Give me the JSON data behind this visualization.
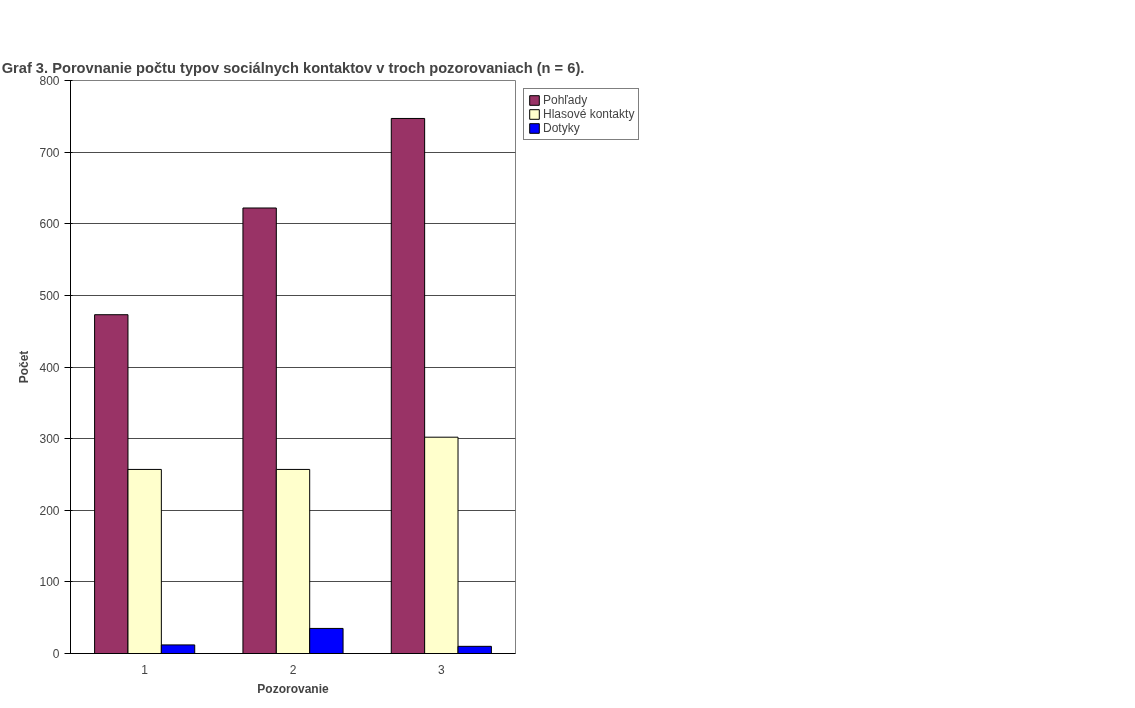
{
  "chart_data": {
    "type": "bar",
    "title": "Graf 3. Porovnanie počtu typov sociálnych kontaktov v troch pozorovaniach (n = 6).",
    "xlabel": "Pozorovanie",
    "ylabel": "Počet",
    "categories": [
      "1",
      "2",
      "3"
    ],
    "series": [
      {
        "name": "Pohľady",
        "color": "#993366",
        "values": [
          473,
          622,
          747
        ]
      },
      {
        "name": "Hlasové kontakty",
        "color": "#ffffcc",
        "values": [
          257,
          257,
          302
        ]
      },
      {
        "name": "Dotyky",
        "color": "#0000ff",
        "values": [
          12,
          35,
          10
        ]
      }
    ],
    "ylim": [
      0,
      800
    ],
    "yticks": [
      0,
      100,
      200,
      300,
      400,
      500,
      600,
      700,
      800
    ],
    "grid": "y",
    "legend": "top right"
  }
}
